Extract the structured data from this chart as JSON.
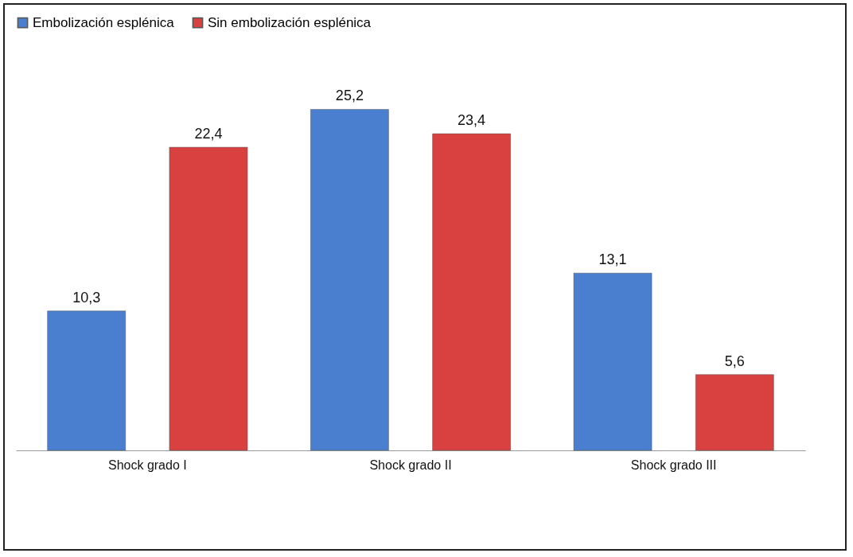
{
  "chart_data": {
    "type": "bar",
    "categories": [
      "Shock grado I",
      "Shock grado II",
      "Shock grado III"
    ],
    "series": [
      {
        "name": "Embolización esplénica",
        "color": "#4a7fd0",
        "values": [
          10.3,
          25.2,
          13.1
        ],
        "value_labels": [
          "10,3",
          "25,2",
          "13,1"
        ]
      },
      {
        "name": "Sin embolización esplénica",
        "color": "#d94040",
        "values": [
          22.4,
          23.4,
          5.6
        ],
        "value_labels": [
          "22,4",
          "23,4",
          "5,6"
        ]
      }
    ],
    "legend": "top",
    "grid": false
  }
}
